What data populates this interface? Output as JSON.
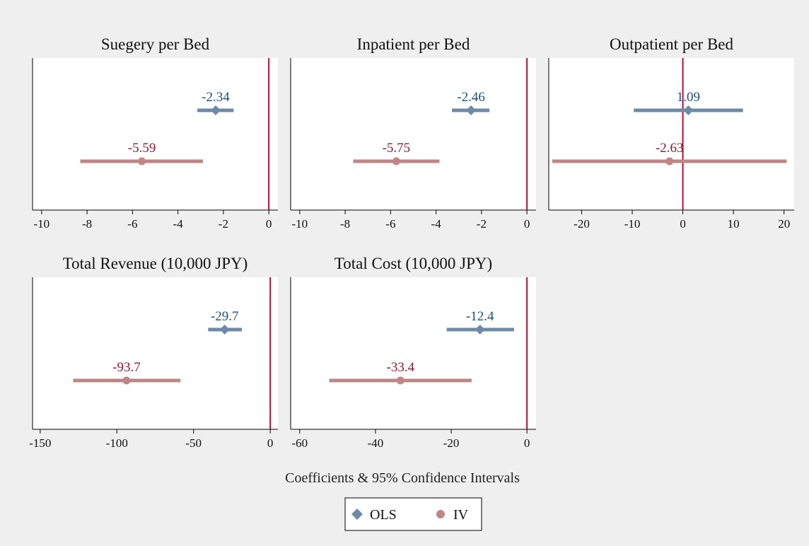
{
  "figure": {
    "xtitle": "Coefficients & 95% Confidence Intervals",
    "colors": {
      "ols": "#6e8aa6",
      "iv": "#c08585",
      "ols_label": "#1f4e79",
      "iv_label": "#8b1a2b",
      "zero_line": "#b0103a",
      "background": "#efefef",
      "plot_bg": "#ffffff"
    },
    "legend": {
      "items": [
        {
          "label": "OLS",
          "marker": "diamond",
          "color_key": "ols"
        },
        {
          "label": "IV",
          "marker": "circle",
          "color_key": "iv"
        }
      ],
      "placement": "bottom-center"
    }
  },
  "chart_data": [
    {
      "type": "scatter",
      "title": "Suegery per Bed",
      "xlim": [
        -10.4,
        0.4
      ],
      "xticks": [
        -10,
        -8,
        -6,
        -4,
        -2,
        0
      ],
      "reference_line": 0,
      "series": [
        {
          "name": "OLS",
          "estimate": -2.34,
          "ci": [
            -3.15,
            -1.55
          ],
          "label": "-2.34"
        },
        {
          "name": "IV",
          "estimate": -5.59,
          "ci": [
            -8.3,
            -2.9
          ],
          "label": "-5.59"
        }
      ]
    },
    {
      "type": "scatter",
      "title": "Inpatient per Bed",
      "xlim": [
        -10.4,
        0.4
      ],
      "xticks": [
        -10,
        -8,
        -6,
        -4,
        -2,
        0
      ],
      "reference_line": 0,
      "series": [
        {
          "name": "OLS",
          "estimate": -2.46,
          "ci": [
            -3.3,
            -1.65
          ],
          "label": "-2.46"
        },
        {
          "name": "IV",
          "estimate": -5.75,
          "ci": [
            -7.65,
            -3.85
          ],
          "label": "-5.75"
        }
      ]
    },
    {
      "type": "scatter",
      "title": "Outpatient per Bed",
      "xlim": [
        -26.5,
        22.0
      ],
      "xticks": [
        -20,
        -10,
        0,
        10,
        20
      ],
      "reference_line": 0,
      "series": [
        {
          "name": "OLS",
          "estimate": 1.09,
          "ci": [
            -9.7,
            11.9
          ],
          "label": "1.09"
        },
        {
          "name": "IV",
          "estimate": -2.63,
          "ci": [
            -25.8,
            20.5
          ],
          "label": "-2.63"
        }
      ]
    },
    {
      "type": "scatter",
      "title": "Total Revenue (10,000 JPY)",
      "xlim": [
        -155,
        5
      ],
      "xticks": [
        -150,
        -100,
        -50,
        0
      ],
      "reference_line": 0,
      "series": [
        {
          "name": "OLS",
          "estimate": -29.7,
          "ci": [
            -40.5,
            -18.5
          ],
          "label": "-29.7"
        },
        {
          "name": "IV",
          "estimate": -93.7,
          "ci": [
            -128.5,
            -58.5
          ],
          "label": "-93.7"
        }
      ]
    },
    {
      "type": "scatter",
      "title": "Total Cost (10,000 JPY)",
      "xlim": [
        -62.4,
        2.4
      ],
      "xticks": [
        -60,
        -40,
        -20,
        0
      ],
      "reference_line": 0,
      "series": [
        {
          "name": "OLS",
          "estimate": -12.4,
          "ci": [
            -21.2,
            -3.4
          ],
          "label": "-12.4"
        },
        {
          "name": "IV",
          "estimate": -33.4,
          "ci": [
            -52.2,
            -14.6
          ],
          "label": "-33.4"
        }
      ]
    }
  ]
}
